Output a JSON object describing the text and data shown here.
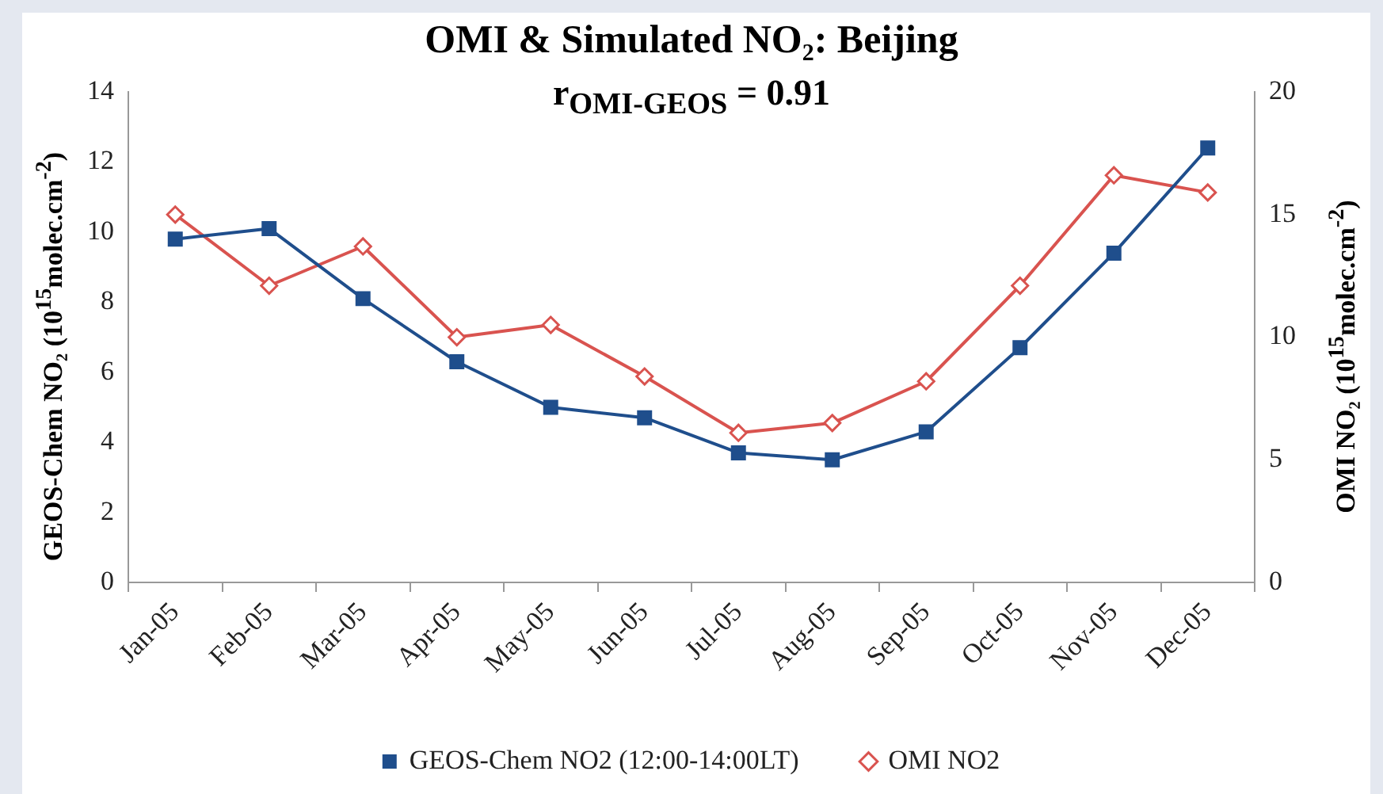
{
  "chart_data": {
    "type": "line",
    "title": "OMI & Simulated NO₂: Beijing",
    "subtitle": "r$_{OMI-GEOS}$ = 0.91",
    "ylabel": "GEOS-Chem NO₂ (10$^{15}$molec.cm$^{-2}$)",
    "y2label": "OMI NO₂ (10$^{15}$molec.cm$^{-2}$)",
    "categories": [
      "Jan-05",
      "Feb-05",
      "Mar-05",
      "Apr-05",
      "May-05",
      "Jun-05",
      "Jul-05",
      "Aug-05",
      "Sep-05",
      "Oct-05",
      "Nov-05",
      "Dec-05"
    ],
    "series": [
      {
        "name": "GEOS-Chem NO2 (12:00-14:00LT)",
        "color": "#1f4e8c",
        "marker": "square",
        "values": [
          9.8,
          10.1,
          8.1,
          6.3,
          5.0,
          4.7,
          3.7,
          3.5,
          4.3,
          6.7,
          9.4,
          12.4
        ]
      },
      {
        "name": "OMI NO2",
        "color": "#d9534f",
        "marker": "diamond",
        "axis": "y2",
        "values": [
          15.0,
          12.1,
          13.7,
          10.0,
          10.5,
          8.4,
          6.1,
          6.5,
          8.2,
          12.1,
          16.6,
          15.9
        ]
      }
    ],
    "ylim": [
      0,
      14
    ],
    "yticks": [
      0,
      2,
      4,
      6,
      8,
      10,
      12,
      14
    ],
    "y2lim": [
      0,
      20
    ],
    "y2ticks": [
      0,
      5,
      10,
      15,
      20
    ],
    "grid": false,
    "legend": "bottom"
  }
}
